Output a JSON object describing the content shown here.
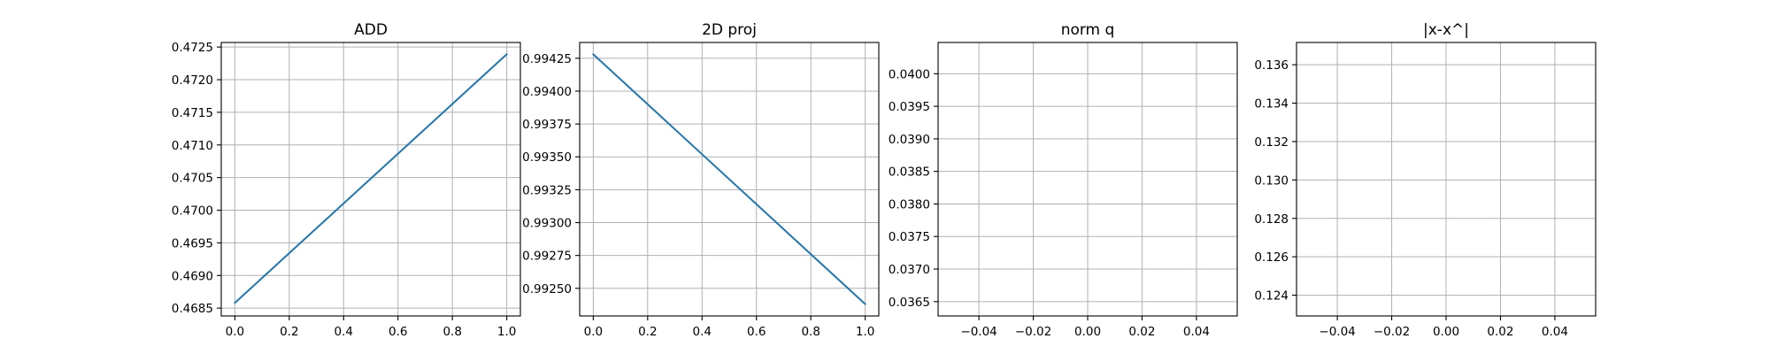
{
  "chart_data": [
    {
      "type": "line",
      "title": "ADD",
      "xlabel": "",
      "ylabel": "",
      "grid": true,
      "xlim": [
        -0.05,
        1.05
      ],
      "ylim": [
        0.46838,
        0.47257
      ],
      "x_ticks": [
        0.0,
        0.2,
        0.4,
        0.6,
        0.8,
        1.0
      ],
      "x_tick_labels": [
        "0.0",
        "0.2",
        "0.4",
        "0.6",
        "0.8",
        "1.0"
      ],
      "y_ticks": [
        0.4685,
        0.469,
        0.4695,
        0.47,
        0.4705,
        0.471,
        0.4715,
        0.472,
        0.4725
      ],
      "y_tick_labels": [
        "0.4685",
        "0.4690",
        "0.4695",
        "0.4700",
        "0.4705",
        "0.4710",
        "0.4715",
        "0.4720",
        "0.4725"
      ],
      "series": [
        {
          "x": [
            0,
            1
          ],
          "y": [
            0.46858,
            0.47239
          ],
          "color": "#1f77b4"
        }
      ]
    },
    {
      "type": "line",
      "title": "2D proj",
      "xlabel": "",
      "ylabel": "",
      "grid": true,
      "xlim": [
        -0.05,
        1.05
      ],
      "ylim": [
        0.99229,
        0.99437
      ],
      "x_ticks": [
        0.0,
        0.2,
        0.4,
        0.6,
        0.8,
        1.0
      ],
      "x_tick_labels": [
        "0.0",
        "0.2",
        "0.4",
        "0.6",
        "0.8",
        "1.0"
      ],
      "y_ticks": [
        0.9925,
        0.99275,
        0.993,
        0.99325,
        0.9935,
        0.99375,
        0.994,
        0.99425
      ],
      "y_tick_labels": [
        "0.99250",
        "0.99275",
        "0.99300",
        "0.99325",
        "0.99350",
        "0.99375",
        "0.99400",
        "0.99425"
      ],
      "series": [
        {
          "x": [
            0,
            1
          ],
          "y": [
            0.99428,
            0.99238
          ],
          "color": "#1f77b4"
        }
      ]
    },
    {
      "type": "line",
      "title": "norm q",
      "xlabel": "",
      "ylabel": "",
      "grid": true,
      "xlim": [
        -0.055,
        0.055
      ],
      "ylim": [
        0.03628,
        0.04048
      ],
      "x_ticks": [
        -0.04,
        -0.02,
        0.0,
        0.02,
        0.04
      ],
      "x_tick_labels": [
        "−0.04",
        "−0.02",
        "0.00",
        "0.02",
        "0.04"
      ],
      "y_ticks": [
        0.0365,
        0.037,
        0.0375,
        0.038,
        0.0385,
        0.039,
        0.0395,
        0.04
      ],
      "y_tick_labels": [
        "0.0365",
        "0.0370",
        "0.0375",
        "0.0380",
        "0.0385",
        "0.0390",
        "0.0395",
        "0.0400"
      ],
      "series": []
    },
    {
      "type": "line",
      "title": "|x-x^|",
      "xlabel": "",
      "ylabel": "",
      "grid": true,
      "xlim": [
        -0.055,
        0.055
      ],
      "ylim": [
        0.12292,
        0.13716
      ],
      "x_ticks": [
        -0.04,
        -0.02,
        0.0,
        0.02,
        0.04
      ],
      "x_tick_labels": [
        "−0.04",
        "−0.02",
        "0.00",
        "0.02",
        "0.04"
      ],
      "y_ticks": [
        0.124,
        0.126,
        0.128,
        0.13,
        0.132,
        0.134,
        0.136
      ],
      "y_tick_labels": [
        "0.124",
        "0.126",
        "0.128",
        "0.130",
        "0.132",
        "0.134",
        "0.136"
      ],
      "series": []
    }
  ]
}
